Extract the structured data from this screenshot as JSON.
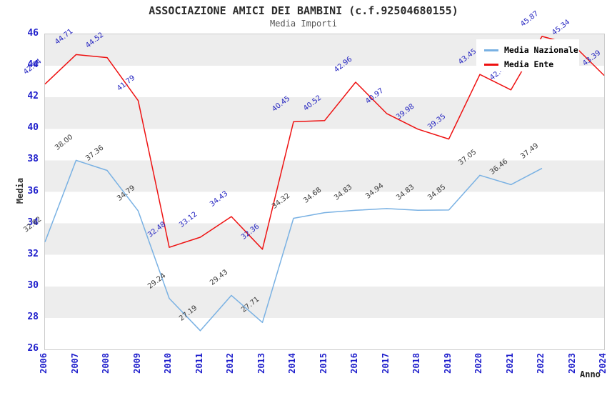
{
  "chart_data": {
    "type": "line",
    "title": "ASSOCIAZIONE AMICI DEI BAMBINI (c.f.92504680155)",
    "subtitle": "Media Importi",
    "xlabel": "Anno",
    "ylabel": "Media",
    "x": [
      2006,
      2007,
      2008,
      2009,
      2010,
      2011,
      2012,
      2013,
      2014,
      2015,
      2016,
      2017,
      2018,
      2019,
      2020,
      2021,
      2022,
      2023,
      2024
    ],
    "ylim": [
      26,
      46
    ],
    "ytick_step": 2,
    "grid": "alternating-horizontal-bands",
    "band_colors": [
      "#ededed",
      "#ffffff"
    ],
    "legend_position": "top-right",
    "axis_tick_color": "#2020cc",
    "series": [
      {
        "name": "Media Nazionale",
        "color": "#79b1e3",
        "label_color": "#3c3c3c",
        "values": [
          32.82,
          38.0,
          37.36,
          34.79,
          29.24,
          27.19,
          29.43,
          27.71,
          34.32,
          34.68,
          34.83,
          34.94,
          34.83,
          34.85,
          37.05,
          36.46,
          37.49,
          null,
          null
        ]
      },
      {
        "name": "Media Ente",
        "color": "#ee1111",
        "label_color": "#2222c0",
        "values": [
          42.84,
          44.71,
          44.52,
          41.79,
          32.48,
          33.12,
          34.43,
          32.36,
          40.45,
          40.52,
          42.96,
          40.97,
          39.98,
          39.35,
          43.45,
          42.47,
          45.87,
          45.34,
          43.39
        ]
      }
    ]
  }
}
